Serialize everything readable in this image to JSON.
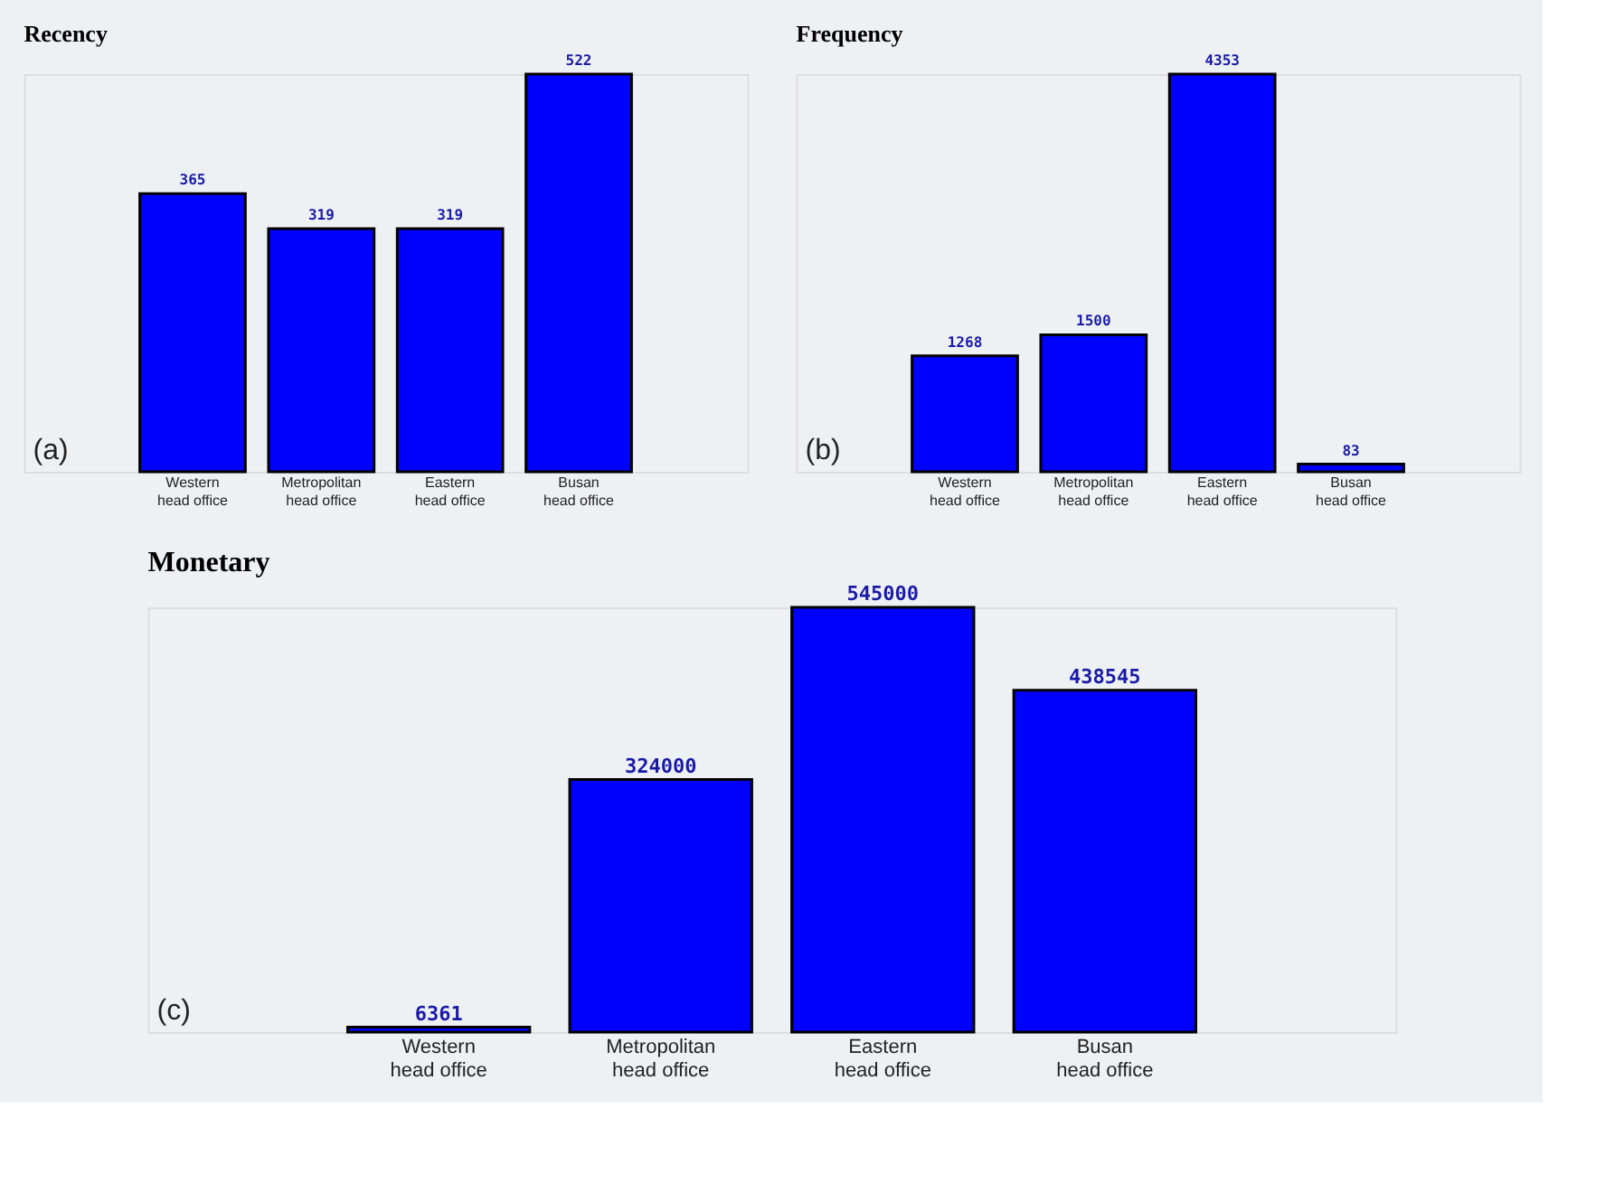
{
  "chart_data": [
    {
      "type": "bar",
      "title": "Recency",
      "categories": [
        "Western head office",
        "Metropolitan head office",
        "Eastern head office",
        "Busan head office"
      ],
      "values": [
        365,
        319,
        319,
        522
      ],
      "color": "#0000ff",
      "data_labels": true,
      "annotations": [
        "(a)"
      ]
    },
    {
      "type": "bar",
      "title": "Frequency",
      "categories": [
        "Western head office",
        "Metropolitan head office",
        "Eastern head office",
        "Busan head office"
      ],
      "values": [
        1268,
        1500,
        4353,
        83
      ],
      "color": "#0000ff",
      "data_labels": true,
      "annotations": [
        "(b)"
      ]
    },
    {
      "type": "bar",
      "title": "Monetary",
      "categories": [
        "Western head office",
        "Metropolitan head office",
        "Eastern head office",
        "Busan head office"
      ],
      "values": [
        6361,
        324000,
        545000,
        438545
      ],
      "color": "#0000ff",
      "data_labels": true,
      "annotations": [
        "(c)"
      ]
    }
  ]
}
